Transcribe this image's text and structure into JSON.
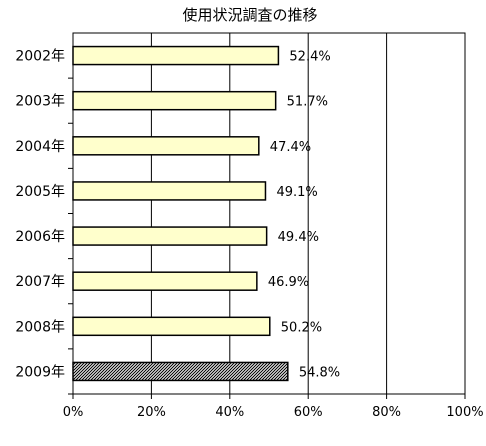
{
  "chart_data": {
    "type": "bar",
    "orientation": "horizontal",
    "title": "使用状況調査の推移",
    "categories": [
      "2002年",
      "2003年",
      "2004年",
      "2005年",
      "2006年",
      "2007年",
      "2008年",
      "2009年"
    ],
    "values": [
      52.4,
      51.7,
      47.4,
      49.1,
      49.4,
      46.9,
      50.2,
      54.8
    ],
    "data_labels": [
      "52.4%",
      "51.7%",
      "47.4%",
      "49.1%",
      "49.4%",
      "46.9%",
      "50.2%",
      "54.8%"
    ],
    "xlim": [
      0,
      100
    ],
    "xticks": [
      0,
      20,
      40,
      60,
      80,
      100
    ],
    "xtick_labels": [
      "0%",
      "20%",
      "40%",
      "60%",
      "80%",
      "100%"
    ],
    "grid": "vertical",
    "bar_color": "#ffffcc",
    "highlight_category": "2009年",
    "highlight_fill": "hatched black"
  }
}
